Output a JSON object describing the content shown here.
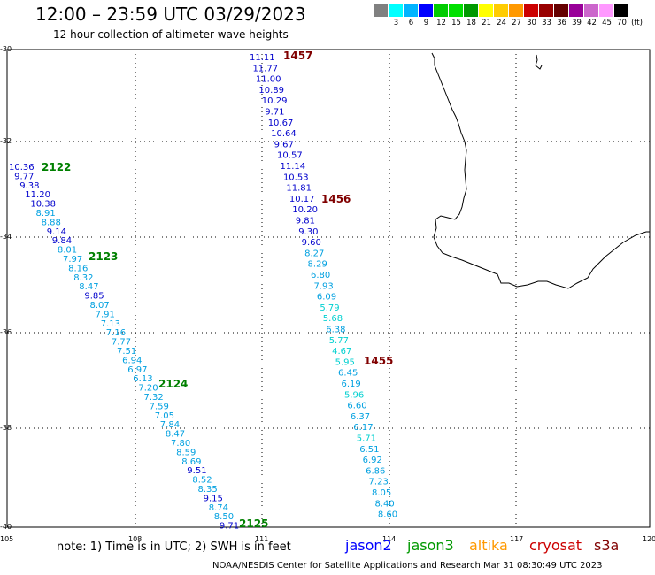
{
  "title": "12:00 – 23:59 UTC 03/29/2023",
  "subtitle": "12 hour collection of altimeter wave heights",
  "legend": {
    "colors": [
      "#808080",
      "#00ffff",
      "#00b4ff",
      "#0000ff",
      "#00cc00",
      "#00e000",
      "#009900",
      "#ffff00",
      "#ffcc00",
      "#ff9900",
      "#cc0000",
      "#990000",
      "#660000",
      "#990099",
      "#cc66cc",
      "#ff99ff",
      "#000000"
    ],
    "labels": [
      "",
      "3",
      "6",
      "9",
      "12",
      "15",
      "18",
      "21",
      "24",
      "27",
      "30",
      "33",
      "36",
      "39",
      "42",
      "45",
      "70",
      "(ft)"
    ]
  },
  "axes": {
    "lat_labels": [
      "-30",
      "-32",
      "-34",
      "-36",
      "-38",
      "-40"
    ],
    "lon_labels": [
      "105",
      "108",
      "111",
      "114",
      "117",
      "120"
    ]
  },
  "tracks": {
    "track_1457": {
      "pass": "1457",
      "pass_color": "#800000",
      "values": [
        "11.11",
        "11.77",
        "11.00",
        "10.89",
        "10.29",
        "9.71",
        "10.67",
        "10.64",
        "9.67",
        "10.57",
        "11.14",
        "10.53",
        "11.81",
        "10.17",
        "10.20",
        "9.81",
        "9.30",
        "9.60",
        "8.27",
        "8.29",
        "6.80",
        "7.93",
        "6.09",
        "5.79",
        "5.68",
        "6.38",
        "5.77",
        "4.67",
        "5.95",
        "6.45",
        "6.19",
        "5.96",
        "6.60",
        "6.37",
        "6.17",
        "5.71",
        "6.51",
        "6.92",
        "6.86",
        "7.23",
        "8.05",
        "8.40",
        "8.60"
      ]
    },
    "track_1456": {
      "pass": "1456",
      "pass_color": "#800000"
    },
    "track_1455": {
      "pass": "1455",
      "pass_color": "#800000"
    },
    "track_2122": {
      "pass": "2122",
      "pass_color": "#008000",
      "values": [
        "10.36",
        "9.77",
        "9.38",
        "11.20",
        "10.38",
        "8.91",
        "8.88",
        "9.14",
        "9.84",
        "8.01",
        "7.97",
        "8.16",
        "8.32",
        "8.47",
        "9.85",
        "8.07",
        "7.91",
        "7.13",
        "7.16",
        "7.77",
        "7.51",
        "6.94",
        "6.97",
        "6.13",
        "7.20",
        "7.32",
        "7.59",
        "7.05",
        "7.84",
        "8.47",
        "7.80",
        "8.59",
        "8.69",
        "9.51",
        "8.52",
        "8.35",
        "9.15",
        "8.74",
        "8.50",
        "9.71"
      ]
    },
    "track_2123": {
      "pass": "2123",
      "pass_color": "#008000"
    },
    "track_2124": {
      "pass": "2124",
      "pass_color": "#008000"
    },
    "track_2125": {
      "pass": "2125",
      "pass_color": "#008000"
    }
  },
  "note": "note:  1) Time is in UTC;  2) SWH is in feet",
  "satellites": [
    {
      "name": "jason2",
      "color": "#0000ff"
    },
    {
      "name": "jason3",
      "color": "#009900"
    },
    {
      "name": "altika",
      "color": "#ff9900"
    },
    {
      "name": "cryosat",
      "color": "#cc0000"
    },
    {
      "name": "s3a",
      "color": "#800000"
    }
  ],
  "footer": "NOAA/NESDIS Center for Satellite Applications and Research     Mar 31 08:30:49 UTC 2023"
}
